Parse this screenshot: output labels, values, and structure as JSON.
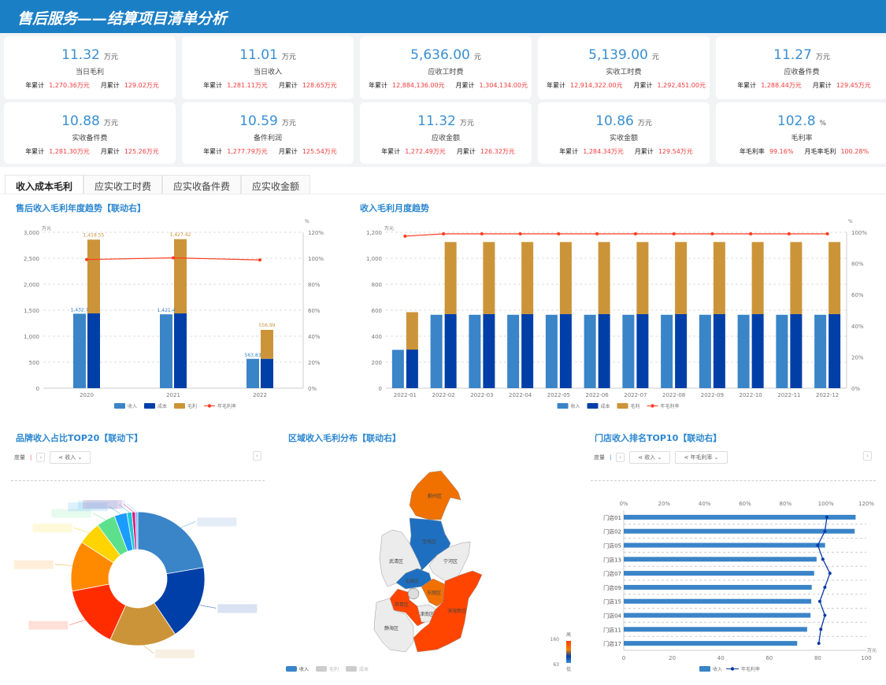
{
  "header": {
    "title": "售后服务——结算项目清单分析"
  },
  "kpis": [
    {
      "value": "11.32",
      "unit": "万元",
      "label": "当日毛利",
      "k1": "年累计",
      "v1": "1,270.36万元",
      "k2": "月累计",
      "v2": "129.02万元"
    },
    {
      "value": "11.01",
      "unit": "万元",
      "label": "当日收入",
      "k1": "年累计",
      "v1": "1,281.11万元",
      "k2": "月累计",
      "v2": "128.65万元"
    },
    {
      "value": "5,636.00",
      "unit": "元",
      "label": "应收工时费",
      "k1": "年累计",
      "v1": "12,884,136.00元",
      "k2": "月累计",
      "v2": "1,304,134.00元"
    },
    {
      "value": "5,139.00",
      "unit": "元",
      "label": "实收工时费",
      "k1": "年累计",
      "v1": "12,914,322.00元",
      "k2": "月累计",
      "v2": "1,292,451.00元"
    },
    {
      "value": "11.27",
      "unit": "万元",
      "label": "应收备件费",
      "k1": "年累计",
      "v1": "1,288.44万元",
      "k2": "月累计",
      "v2": "129.45万元"
    },
    {
      "value": "10.88",
      "unit": "万元",
      "label": "实收备件费",
      "k1": "年累计",
      "v1": "1,281.30万元",
      "k2": "月累计",
      "v2": "125.26万元"
    },
    {
      "value": "10.59",
      "unit": "万元",
      "label": "备件利润",
      "k1": "年累计",
      "v1": "1,277.79万元",
      "k2": "月累计",
      "v2": "125.54万元"
    },
    {
      "value": "11.32",
      "unit": "万元",
      "label": "应收金额",
      "k1": "年累计",
      "v1": "1,272.49万元",
      "k2": "月累计",
      "v2": "126.32万元"
    },
    {
      "value": "10.86",
      "unit": "万元",
      "label": "实收金额",
      "k1": "年累计",
      "v1": "1,284.34万元",
      "k2": "月累计",
      "v2": "129.54万元"
    },
    {
      "value": "102.8",
      "unit": "%",
      "label": "毛利率",
      "k1": "年毛利率",
      "v1": "99.16%",
      "k2": "月毛率毛利",
      "v2": "100.28%"
    }
  ],
  "tabs": [
    {
      "label": "收入成本毛利",
      "active": true
    },
    {
      "label": "应实收工时费"
    },
    {
      "label": "应实收备件费"
    },
    {
      "label": "应实收金额"
    }
  ],
  "colors": {
    "revenue": "#3a84c8",
    "cost": "#003fa8",
    "gross": "#cc9438",
    "margin": "#ff3b1f",
    "store_line": "#0a3aa6"
  },
  "sections": {
    "yearly_title": "售后收入毛利年度趋势【联动右】",
    "monthly_title": "收入毛利月度趋势",
    "brand_title": "品牌收入占比TOP20【联动下】",
    "region_title": "区域收入毛利分布【联动右】",
    "store_title": "门店收入排名TOP10【联动右】"
  },
  "controls": {
    "measure": "度量",
    "prev": "‹",
    "next": "›",
    "brand_dd": "收入",
    "store_dd1": "收入",
    "store_dd2": "年毛利率"
  },
  "chart_data": [
    {
      "type": "bar",
      "id": "yearly",
      "categories": [
        "2020",
        "2021",
        "2022"
      ],
      "y_unit": "万元",
      "y2_unit": "%",
      "ylim": [
        0,
        3000
      ],
      "y2lim": [
        0,
        120
      ],
      "yticks": [
        "0",
        "500",
        "1,000",
        "1,500",
        "2,000",
        "2,500",
        "3,000"
      ],
      "y2ticks": [
        "0%",
        "20%",
        "40%",
        "60%",
        "80%",
        "100%",
        "120%"
      ],
      "series": [
        {
          "name": "收入",
          "values": [
            1432.7,
            1421.4,
            563.83
          ],
          "labels": [
            "1,432.7",
            "1,421.4",
            "563.83"
          ]
        },
        {
          "name": "成本",
          "values": [
            1440,
            1440,
            565
          ],
          "stack": "a"
        },
        {
          "name": "毛利",
          "values": [
            1418.55,
            1427.42,
            556.99
          ],
          "stack": "a",
          "labels": [
            "1,418.55",
            "1,427.42",
            "556.99"
          ]
        },
        {
          "name": "年毛利率",
          "type": "line",
          "values": [
            99,
            100.3,
            98.7
          ]
        }
      ],
      "legend": "bottom",
      "grid": true
    },
    {
      "type": "bar",
      "id": "monthly",
      "categories": [
        "2022-01",
        "2022-02",
        "2022-03",
        "2022-04",
        "2022-05",
        "2022-06",
        "2022-07",
        "2022-08",
        "2022-09",
        "2022-10",
        "2022-11",
        "2022-12"
      ],
      "y_unit": "万元",
      "y2_unit": "%",
      "ylim": [
        0,
        1200
      ],
      "y2lim": [
        0,
        100
      ],
      "yticks": [
        "0",
        "200",
        "400",
        "600",
        "800",
        "1,000",
        "1,200"
      ],
      "y2ticks": [
        "0%",
        "20%",
        "40%",
        "60%",
        "80%",
        "100%"
      ],
      "series": [
        {
          "name": "收入",
          "values": [
            295,
            565,
            565,
            565,
            565,
            565,
            565,
            565,
            565,
            565,
            565,
            565
          ]
        },
        {
          "name": "成本",
          "values": [
            297,
            570,
            570,
            570,
            570,
            570,
            570,
            570,
            570,
            570,
            570,
            570
          ],
          "stack": "a"
        },
        {
          "name": "毛利",
          "values": [
            288,
            555,
            555,
            555,
            555,
            555,
            555,
            555,
            555,
            555,
            555,
            555
          ],
          "stack": "a"
        },
        {
          "name": "年毛利率",
          "type": "line",
          "values": [
            97.5,
            99,
            99,
            99,
            99,
            99,
            99,
            99,
            99,
            99,
            99,
            99
          ]
        }
      ],
      "legend": "bottom",
      "grid": true
    },
    {
      "type": "pie",
      "id": "brand",
      "donut": true,
      "values": [
        22,
        18,
        16,
        15,
        12,
        5.5,
        4.5,
        3,
        1.2,
        0.8,
        0.6
      ],
      "colors": [
        "#3a84c8",
        "#003fa8",
        "#cc9438",
        "#ff2c00",
        "#ff8a00",
        "#ffd400",
        "#5de08c",
        "#1a9cff",
        "#20c8d8",
        "#e0147a",
        "#7ab8ff"
      ]
    },
    {
      "type": "map",
      "id": "region",
      "legend": [
        "收入",
        "毛利",
        "成本"
      ],
      "visual_range": [
        63,
        160
      ],
      "visual_labels": {
        "high": "高",
        "low": "低",
        "max": "160",
        "min": "63"
      },
      "regions": [
        {
          "name": "蓟州区",
          "value": 135
        },
        {
          "name": "宝坻区",
          "value": 72
        },
        {
          "name": "武清区",
          "value": null
        },
        {
          "name": "宁河区",
          "value": null
        },
        {
          "name": "北辰区",
          "value": 68
        },
        {
          "name": "东丽区",
          "value": 130
        },
        {
          "name": "西青区",
          "value": 160
        },
        {
          "name": "津南区",
          "value": null
        },
        {
          "name": "滨海新区",
          "value": 158
        },
        {
          "name": "静海区",
          "value": null
        }
      ]
    },
    {
      "type": "bar",
      "id": "store",
      "orientation": "horizontal",
      "categories": [
        "门店01",
        "门店02",
        "门店05",
        "门店13",
        "门店07",
        "门店09",
        "门店15",
        "门店04",
        "门店11",
        "门店17"
      ],
      "xlim": [
        0,
        100
      ],
      "x_unit": "万元",
      "x2lim": [
        0,
        120
      ],
      "xticks": [
        "0",
        "20",
        "40",
        "60",
        "80",
        "100"
      ],
      "x2ticks": [
        "0%",
        "20%",
        "40%",
        "60%",
        "80%",
        "100%",
        "120%"
      ],
      "series": [
        {
          "name": "收入",
          "values": [
            95.6,
            95.2,
            83,
            79.5,
            78.5,
            77.5,
            77.3,
            77,
            75.6,
            71.5
          ]
        },
        {
          "name": "年毛利率",
          "type": "line",
          "values": [
            100.5,
            99.5,
            96,
            98.5,
            102,
            99.5,
            97,
            99.5,
            97.5,
            96.5
          ]
        }
      ],
      "legend": "bottom"
    }
  ]
}
